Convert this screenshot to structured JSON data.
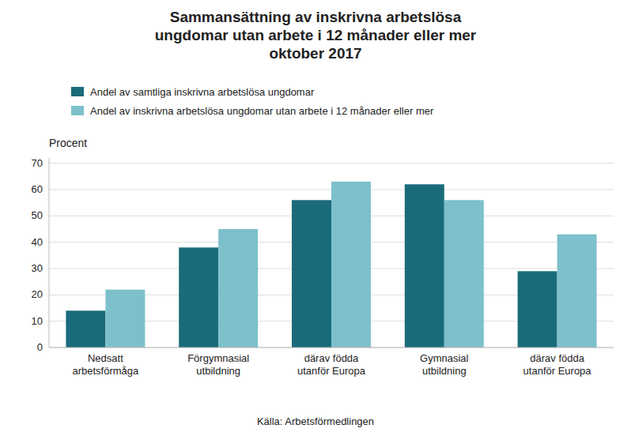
{
  "chart_data": {
    "type": "bar",
    "title": "Sammansättning av inskrivna arbetslösa\nungdomar utan arbete i 12 månader eller mer\noktober 2017",
    "ylabel": "Procent",
    "source": "Källa: Arbetsförmedlingen",
    "categories": [
      "Nedsatt\narbetsförmåga",
      "Förgymnasial\nutbildning",
      "därav födda\nutanför Europa",
      "Gymnasial\nutbildning",
      "därav födda\nutanför Europa"
    ],
    "series": [
      {
        "name": "Andel av samtliga inskrivna arbetslösa ungdomar",
        "color": "#1a6b7a",
        "values": [
          14,
          38,
          56,
          62,
          29
        ]
      },
      {
        "name": "Andel av inskrivna arbetslösa ungdomar utan arbete i 12 månader eller mer",
        "color": "#7dc0cc",
        "values": [
          22,
          45,
          63,
          56,
          43
        ]
      }
    ],
    "ylim": [
      0,
      72
    ],
    "yticks": [
      0,
      10,
      20,
      30,
      40,
      50,
      60,
      70
    ],
    "grid": true,
    "legend": "top"
  }
}
